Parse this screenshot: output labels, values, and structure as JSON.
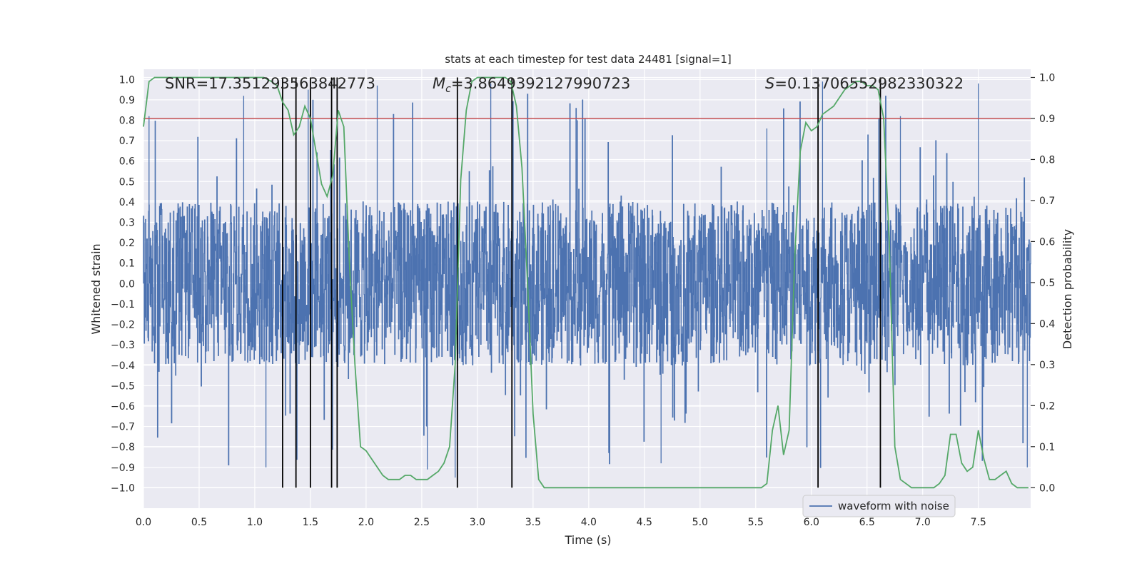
{
  "chart_data": {
    "type": "line",
    "title": "stats at each timestep for test data 24481 [signal=1]",
    "xlabel": "Time (s)",
    "ylabel_left": "Whitened strain",
    "ylabel_right": "Detection probability",
    "xlim": [
      0.0,
      7.97
    ],
    "ylim_left": [
      -1.1,
      1.05
    ],
    "ylim_right": [
      -0.05,
      1.02
    ],
    "x_ticks": [
      "0.0",
      "0.5",
      "1.0",
      "1.5",
      "2.0",
      "2.5",
      "3.0",
      "3.5",
      "4.0",
      "4.5",
      "5.0",
      "5.5",
      "6.0",
      "6.5",
      "7.0",
      "7.5"
    ],
    "y_left_ticks": [
      "1.0",
      "0.9",
      "0.8",
      "0.7",
      "0.6",
      "0.5",
      "0.4",
      "0.3",
      "0.2",
      "0.1",
      "0.0",
      "-0.1",
      "-0.2",
      "-0.3",
      "-0.4",
      "-0.5",
      "-0.6",
      "-0.7",
      "-0.8",
      "-0.9",
      "-1.0"
    ],
    "y_left_tick_values": [
      1.0,
      0.9,
      0.8,
      0.7,
      0.6,
      0.5,
      0.4,
      0.3,
      0.2,
      0.1,
      0.0,
      -0.1,
      -0.2,
      -0.3,
      -0.4,
      -0.5,
      -0.6,
      -0.7,
      -0.8,
      -0.9,
      -1.0
    ],
    "y_right_ticks": [
      "1.0",
      "0.9",
      "0.8",
      "0.7",
      "0.6",
      "0.5",
      "0.4",
      "0.3",
      "0.2",
      "0.1",
      "0.0"
    ],
    "y_right_tick_values": [
      1.0,
      0.9,
      0.8,
      0.7,
      0.6,
      0.5,
      0.4,
      0.3,
      0.2,
      0.1,
      0.0
    ],
    "annotations": {
      "snr": "SNR=17.351293563842773",
      "mc_symbol": "M",
      "mc_sub": "c",
      "mc_value": "=3.8649392127990723",
      "s_symbol": "S",
      "s_value": "=0.13706552982330322"
    },
    "threshold": {
      "value_right_axis": 0.9,
      "color": "#c44e52"
    },
    "vertical_markers_x": [
      1.25,
      1.37,
      1.5,
      1.69,
      1.74,
      2.82,
      3.31,
      6.06,
      6.62
    ],
    "waveform": {
      "name": "waveform with noise",
      "color": "#4c72b0",
      "envelope_typical": 0.4,
      "envelope_peak_examples": [
        [
          0.05,
          0.82
        ],
        [
          0.9,
          0.92
        ],
        [
          1.1,
          -0.9
        ],
        [
          1.48,
          0.95
        ],
        [
          2.1,
          0.97
        ],
        [
          2.55,
          -0.91
        ],
        [
          2.8,
          -0.95
        ],
        [
          3.12,
          0.98
        ],
        [
          3.9,
          0.8
        ],
        [
          4.18,
          -0.83
        ],
        [
          4.65,
          -0.88
        ],
        [
          5.6,
          0.76
        ],
        [
          6.1,
          0.99
        ],
        [
          6.8,
          0.82
        ],
        [
          7.5,
          0.98
        ],
        [
          7.94,
          -0.9
        ]
      ]
    },
    "probability": {
      "name": "detection probability",
      "color": "#55a868",
      "x": [
        0.0,
        0.05,
        0.1,
        0.2,
        0.4,
        0.6,
        0.8,
        1.0,
        1.08,
        1.15,
        1.2,
        1.25,
        1.3,
        1.35,
        1.4,
        1.45,
        1.5,
        1.55,
        1.6,
        1.65,
        1.7,
        1.75,
        1.8,
        1.85,
        1.9,
        1.95,
        2.0,
        2.05,
        2.1,
        2.15,
        2.2,
        2.25,
        2.3,
        2.35,
        2.4,
        2.45,
        2.5,
        2.55,
        2.6,
        2.65,
        2.7,
        2.75,
        2.8,
        2.85,
        2.9,
        2.95,
        3.0,
        3.05,
        3.1,
        3.15,
        3.2,
        3.25,
        3.3,
        3.35,
        3.4,
        3.45,
        3.5,
        3.55,
        3.6,
        3.65,
        3.7,
        3.8,
        4.0,
        4.2,
        4.4,
        4.6,
        4.8,
        5.0,
        5.2,
        5.4,
        5.5,
        5.55,
        5.6,
        5.65,
        5.7,
        5.75,
        5.8,
        5.85,
        5.9,
        5.95,
        6.0,
        6.05,
        6.1,
        6.15,
        6.2,
        6.25,
        6.3,
        6.35,
        6.4,
        6.45,
        6.5,
        6.55,
        6.6,
        6.65,
        6.7,
        6.75,
        6.8,
        6.85,
        6.9,
        6.95,
        7.0,
        7.05,
        7.1,
        7.15,
        7.2,
        7.25,
        7.3,
        7.35,
        7.4,
        7.45,
        7.5,
        7.55,
        7.6,
        7.65,
        7.7,
        7.75,
        7.8,
        7.85,
        7.9,
        7.95
      ],
      "y": [
        0.88,
        0.99,
        1.0,
        1.0,
        1.0,
        1.0,
        1.0,
        1.0,
        1.0,
        0.99,
        0.98,
        0.94,
        0.92,
        0.86,
        0.88,
        0.93,
        0.9,
        0.82,
        0.74,
        0.71,
        0.76,
        0.92,
        0.88,
        0.55,
        0.3,
        0.1,
        0.09,
        0.07,
        0.05,
        0.03,
        0.02,
        0.02,
        0.02,
        0.03,
        0.03,
        0.02,
        0.02,
        0.02,
        0.03,
        0.04,
        0.06,
        0.1,
        0.3,
        0.75,
        0.92,
        0.99,
        1.0,
        1.0,
        1.0,
        1.0,
        1.0,
        1.0,
        0.99,
        0.93,
        0.78,
        0.5,
        0.18,
        0.02,
        0.0,
        0.0,
        0.0,
        0.0,
        0.0,
        0.0,
        0.0,
        0.0,
        0.0,
        0.0,
        0.0,
        0.0,
        0.0,
        0.0,
        0.01,
        0.14,
        0.2,
        0.08,
        0.14,
        0.56,
        0.82,
        0.89,
        0.87,
        0.88,
        0.91,
        0.92,
        0.93,
        0.95,
        0.97,
        0.98,
        0.99,
        0.99,
        0.98,
        0.98,
        0.97,
        0.9,
        0.6,
        0.1,
        0.02,
        0.01,
        0.0,
        0.0,
        0.0,
        0.0,
        0.0,
        0.01,
        0.03,
        0.13,
        0.13,
        0.06,
        0.04,
        0.05,
        0.14,
        0.07,
        0.02,
        0.02,
        0.03,
        0.04,
        0.01,
        0.0,
        0.0,
        0.0
      ]
    },
    "legend": {
      "label": "waveform with noise",
      "placement": "lower-right"
    },
    "background_color": "#eaeaf2",
    "grid": true
  }
}
